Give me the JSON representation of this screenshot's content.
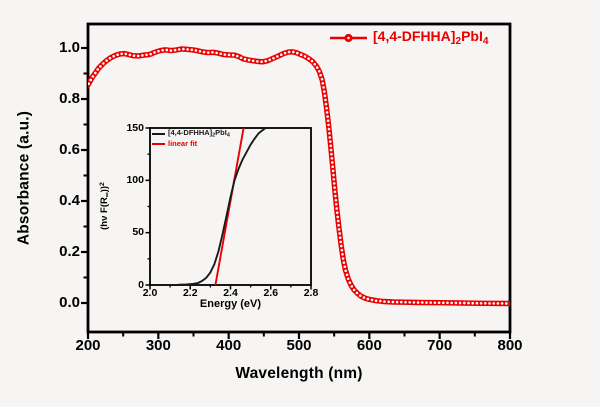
{
  "figure": {
    "bg_color": "#f6f5f3",
    "frame_color": "#000000",
    "accent_red": "#ea0000",
    "series_black": "#1a1a1a"
  },
  "compound_label": {
    "p1": "[4,4-DFHHA]",
    "s1": "2",
    "p2": "PbI",
    "s2": "4",
    "plain": "[4,4-DFHHA]2PbI4"
  },
  "chart_data": [
    {
      "type": "line",
      "role": "main-absorbance-spectrum",
      "xlabel": "Wavelength (nm)",
      "ylabel": "Absorbance (a.u.)",
      "xlim": [
        200,
        800
      ],
      "ylim": [
        -0.11,
        1.09
      ],
      "x_ticks": [
        "200",
        "300",
        "400",
        "500",
        "600",
        "700",
        "800"
      ],
      "x_tick_values": [
        200,
        300,
        400,
        500,
        600,
        700,
        800
      ],
      "y_ticks": [
        "0.0",
        "0.2",
        "0.4",
        "0.6",
        "0.8",
        "1.0"
      ],
      "y_tick_values": [
        0,
        0.2,
        0.4,
        0.6,
        0.8,
        1.0
      ],
      "grid": false,
      "legend_position": "top-right",
      "series": [
        {
          "name": "[4,4-DFHHA]2PbI4",
          "color": "#ea0000",
          "marker": "open-circle",
          "x": [
            200,
            203,
            206,
            210,
            215,
            220,
            226,
            233,
            240,
            246,
            252,
            258,
            264,
            272,
            280,
            288,
            295,
            303,
            310,
            318,
            325,
            333,
            340,
            348,
            355,
            362,
            370,
            378,
            385,
            392,
            400,
            408,
            415,
            420,
            428,
            435,
            442,
            448,
            455,
            462,
            470,
            478,
            485,
            490,
            496,
            502,
            508,
            514,
            520,
            525,
            529,
            533,
            536,
            539,
            542,
            545,
            548,
            551,
            554,
            557,
            560,
            563,
            566,
            570,
            574,
            578,
            583,
            588,
            594,
            600,
            610,
            620,
            635,
            650,
            670,
            700,
            730,
            760,
            800
          ],
          "y": [
            0.855,
            0.87,
            0.885,
            0.9,
            0.92,
            0.935,
            0.95,
            0.963,
            0.972,
            0.977,
            0.978,
            0.974,
            0.97,
            0.969,
            0.972,
            0.975,
            0.983,
            0.99,
            0.993,
            0.99,
            0.992,
            0.996,
            0.995,
            0.993,
            0.99,
            0.985,
            0.982,
            0.983,
            0.98,
            0.975,
            0.973,
            0.972,
            0.966,
            0.958,
            0.953,
            0.95,
            0.947,
            0.946,
            0.95,
            0.958,
            0.968,
            0.978,
            0.984,
            0.985,
            0.982,
            0.975,
            0.968,
            0.958,
            0.945,
            0.928,
            0.908,
            0.875,
            0.83,
            0.77,
            0.7,
            0.62,
            0.53,
            0.44,
            0.36,
            0.29,
            0.225,
            0.17,
            0.13,
            0.095,
            0.07,
            0.052,
            0.038,
            0.027,
            0.019,
            0.014,
            0.009,
            0.006,
            0.004,
            0.003,
            0.002,
            0.001,
            0.0,
            -0.001,
            -0.002
          ]
        }
      ]
    },
    {
      "type": "line",
      "role": "inset-tauc-plot",
      "xlabel": "Energy (eV)",
      "ylabel_parts": {
        "p1": "(hν F(R",
        "sub": "∞",
        "p2": "))",
        "sup": "2"
      },
      "ylabel_plain": "(hv F(R∞))2",
      "xlim": [
        2.0,
        2.8
      ],
      "ylim": [
        0,
        150
      ],
      "x_ticks": [
        "2.0",
        "2.2",
        "2.4",
        "2.6",
        "2.8"
      ],
      "x_tick_values": [
        2.0,
        2.2,
        2.4,
        2.6,
        2.8
      ],
      "y_ticks": [
        "0",
        "50",
        "100",
        "150"
      ],
      "y_tick_values": [
        0,
        50,
        100,
        150
      ],
      "grid": false,
      "legend_position": "top-left",
      "band_gap_intercept_eV": 2.33,
      "series": [
        {
          "name": "[4,4-DFHHA]2PbI4",
          "color": "#1a1a1a",
          "x": [
            2.14,
            2.18,
            2.21,
            2.24,
            2.26,
            2.28,
            2.3,
            2.32,
            2.34,
            2.36,
            2.38,
            2.4,
            2.42,
            2.44,
            2.46,
            2.48,
            2.5,
            2.52,
            2.54,
            2.56,
            2.575
          ],
          "y": [
            0.3,
            0.6,
            1.0,
            2,
            4,
            7,
            12,
            20,
            32,
            48,
            66,
            84,
            100,
            111,
            120,
            127,
            134,
            140,
            145,
            148,
            150
          ]
        },
        {
          "name": "linear fit",
          "color": "#ea0000",
          "x": [
            2.325,
            2.465
          ],
          "y": [
            0,
            150
          ]
        }
      ]
    }
  ]
}
